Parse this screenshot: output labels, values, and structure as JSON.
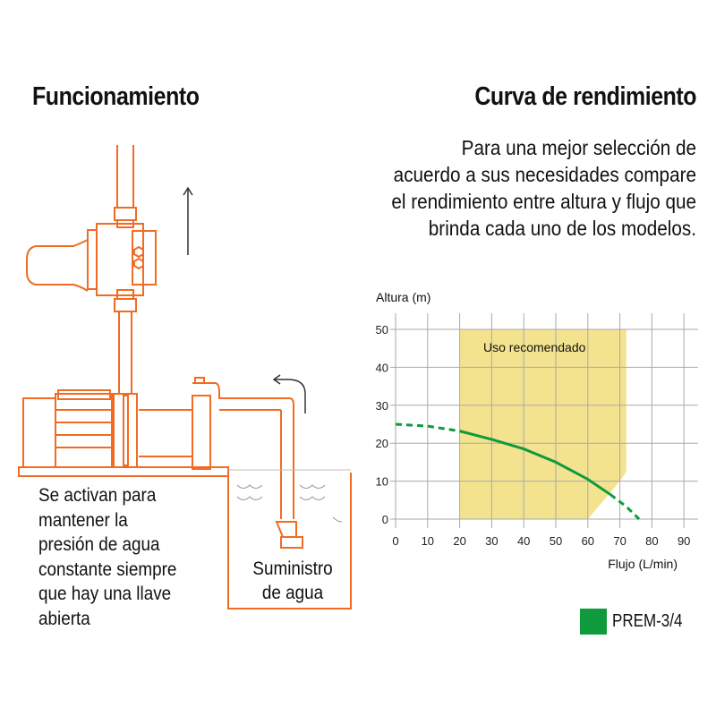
{
  "left_panel": {
    "title": "Funcionamiento",
    "description": "Se activan para\nmantener la\npresión de agua\nconstante siempre\nque hay una llave\nabierta",
    "supply_label": "Suministro\nde agua",
    "drawing_color": "#f26b22",
    "arrow_color": "#333333"
  },
  "right_panel": {
    "title": "Curva de rendimiento",
    "description": "Para una mejor selección de acuerdo a sus necesidades compare el rendimiento entre altura y flujo que brinda cada uno de los modelos.",
    "legend": {
      "label": "PREM-3/4",
      "color": "#0f9a3c"
    }
  },
  "chart_data": {
    "type": "line",
    "title": "Curva de rendimiento",
    "xlabel": "Flujo (L/min)",
    "ylabel": "Altura (m)",
    "xlim": [
      0,
      90
    ],
    "ylim": [
      0,
      50
    ],
    "x_ticks": [
      0,
      10,
      20,
      30,
      40,
      50,
      60,
      70,
      80,
      90
    ],
    "y_ticks": [
      0,
      10,
      20,
      30,
      40,
      50
    ],
    "grid": true,
    "annotation": {
      "label": "Uso recomendado",
      "color": "#f3e38e",
      "polygon": [
        [
          20,
          0
        ],
        [
          20,
          50
        ],
        [
          72,
          50
        ],
        [
          72,
          12.5
        ],
        [
          70,
          10
        ],
        [
          60,
          0
        ]
      ]
    },
    "series": [
      {
        "name": "PREM-3/4",
        "color": "#0f9a3c",
        "x": [
          0,
          10,
          20,
          30,
          40,
          50,
          60,
          67,
          72,
          76
        ],
        "y": [
          25,
          24.5,
          23.2,
          21,
          18.5,
          15,
          10.5,
          6.5,
          3.3,
          0
        ],
        "solid_range": [
          20,
          67
        ],
        "dashed_ranges": [
          [
            0,
            20
          ],
          [
            67,
            76
          ]
        ]
      }
    ],
    "legend_position": "bottom-right"
  }
}
